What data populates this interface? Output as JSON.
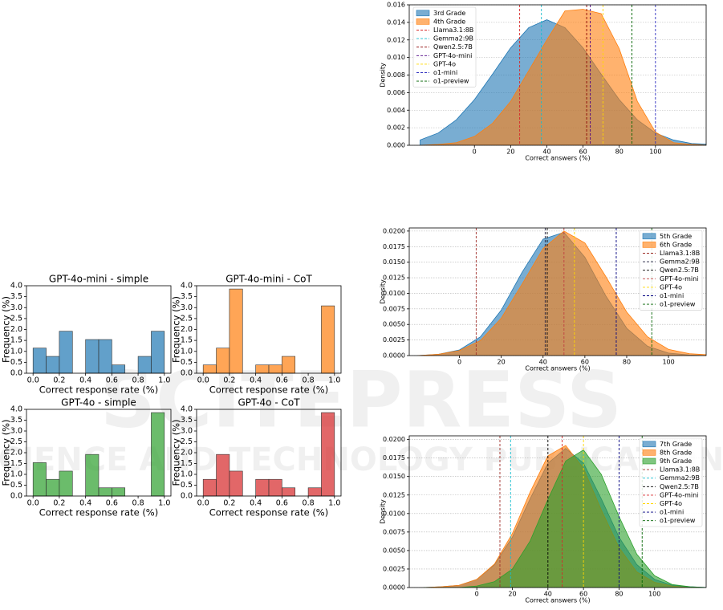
{
  "watermark": {
    "title": "SCITEPRESS",
    "subtitle": "SCIENCE AND TECHNOLOGY PUBLICATIONS"
  },
  "chart_data": [
    {
      "type": "histogram",
      "title": "GPT-4o-mini - simple",
      "xlabel": "Correct response rate (%)",
      "ylabel": "Frequency (%)",
      "color": "#1f77b4",
      "bins": [
        0,
        0.1,
        0.2,
        0.3,
        0.4,
        0.5,
        0.6,
        0.7,
        0.8,
        0.9,
        1.0
      ],
      "values": [
        1.15,
        0.77,
        1.92,
        0,
        1.54,
        1.54,
        0.38,
        0,
        0.77,
        1.92
      ],
      "xlim": [
        -0.05,
        1.05
      ],
      "xticks": [
        {
          "value": 0,
          "label": "0.0"
        },
        0.2,
        0.4,
        0.6,
        0.8,
        {
          "value": 1,
          "label": "1.0"
        }
      ],
      "ylim": [
        0,
        4
      ],
      "yticks": [
        {
          "value": 0,
          "label": "0.0"
        },
        0.5,
        {
          "value": 1,
          "label": "1.0"
        },
        1.5,
        {
          "value": 2,
          "label": "2.0"
        },
        2.5,
        {
          "value": 3,
          "label": "3.0"
        },
        3.5,
        {
          "value": 4,
          "label": "4.0"
        }
      ]
    },
    {
      "type": "histogram",
      "title": "GPT-4o-mini - CoT",
      "xlabel": "Correct response rate (%)",
      "ylabel": "Frequency (%)",
      "color": "#ff7f0e",
      "bins": [
        0,
        0.1,
        0.2,
        0.3,
        0.4,
        0.5,
        0.6,
        0.7,
        0.8,
        0.9,
        1.0
      ],
      "values": [
        0.38,
        1.15,
        3.85,
        0,
        0.38,
        0.38,
        0.77,
        0,
        0,
        3.08
      ],
      "xlim": [
        -0.05,
        1.05
      ],
      "xticks": [
        {
          "value": 0,
          "label": "0.0"
        },
        0.2,
        0.4,
        0.6,
        0.8,
        {
          "value": 1,
          "label": "1.0"
        }
      ],
      "ylim": [
        0,
        4
      ],
      "yticks": [
        {
          "value": 0,
          "label": "0.0"
        },
        0.5,
        {
          "value": 1,
          "label": "1.0"
        },
        1.5,
        {
          "value": 2,
          "label": "2.0"
        },
        2.5,
        {
          "value": 3,
          "label": "3.0"
        },
        3.5,
        {
          "value": 4,
          "label": "4.0"
        }
      ]
    },
    {
      "type": "histogram",
      "title": "GPT-4o - simple",
      "xlabel": "Correct response rate (%)",
      "ylabel": "Frequency (%)",
      "color": "#2ca02c",
      "bins": [
        0,
        0.1,
        0.2,
        0.3,
        0.4,
        0.5,
        0.6,
        0.7,
        0.8,
        0.9,
        1.0
      ],
      "values": [
        1.54,
        0.77,
        1.15,
        0,
        1.92,
        0.38,
        0.38,
        0,
        0,
        3.85
      ],
      "xlim": [
        -0.05,
        1.05
      ],
      "xticks": [
        {
          "value": 0,
          "label": "0.0"
        },
        0.2,
        0.4,
        0.6,
        0.8,
        {
          "value": 1,
          "label": "1.0"
        }
      ],
      "ylim": [
        0,
        4
      ],
      "yticks": [
        {
          "value": 0,
          "label": "0.0"
        },
        0.5,
        {
          "value": 1,
          "label": "1.0"
        },
        1.5,
        {
          "value": 2,
          "label": "2.0"
        },
        2.5,
        {
          "value": 3,
          "label": "3.0"
        },
        3.5,
        {
          "value": 4,
          "label": "4.0"
        }
      ]
    },
    {
      "type": "histogram",
      "title": "GPT-4o - CoT",
      "xlabel": "Correct response rate (%)",
      "ylabel": "Frequency (%)",
      "color": "#d62728",
      "bins": [
        0,
        0.1,
        0.2,
        0.3,
        0.4,
        0.5,
        0.6,
        0.7,
        0.8,
        0.9,
        1.0
      ],
      "values": [
        0.77,
        1.92,
        1.15,
        0,
        0.77,
        0.77,
        0.38,
        0,
        0.38,
        3.85
      ],
      "xlim": [
        -0.05,
        1.05
      ],
      "xticks": [
        {
          "value": 0,
          "label": "0.0"
        },
        0.2,
        0.4,
        0.6,
        0.8,
        {
          "value": 1,
          "label": "1.0"
        }
      ],
      "ylim": [
        0,
        4
      ],
      "yticks": [
        {
          "value": 0,
          "label": "0.0"
        },
        0.5,
        {
          "value": 1,
          "label": "1.0"
        },
        1.5,
        {
          "value": 2,
          "label": "2.0"
        },
        2.5,
        {
          "value": 3,
          "label": "3.0"
        },
        3.5,
        {
          "value": 4,
          "label": "4.0"
        }
      ]
    },
    {
      "type": "area",
      "xlabel": "Correct answers (%)",
      "ylabel": "Density",
      "legend": "upper left",
      "grid": true,
      "x": [
        -30,
        -20,
        -10,
        0,
        10,
        20,
        30,
        40,
        50,
        60,
        70,
        80,
        90,
        100,
        110,
        120,
        130
      ],
      "series": [
        {
          "name": "3rd Grade",
          "color": "#1f77b4",
          "values": [
            0.0006,
            0.0014,
            0.0029,
            0.0052,
            0.0081,
            0.0111,
            0.0134,
            0.0143,
            0.0134,
            0.0111,
            0.0081,
            0.0052,
            0.0029,
            0.0014,
            0.0006,
            0.0002,
            0.0001
          ]
        },
        {
          "name": "4th Grade",
          "color": "#ff7f0e",
          "values": [
            0,
            0.0001,
            0.0003,
            0.001,
            0.0025,
            0.005,
            0.0085,
            0.012,
            0.0153,
            0.0155,
            0.015,
            0.011,
            0.005,
            0.0015,
            0.0003,
            0.0001,
            0
          ]
        }
      ],
      "vlines": [
        {
          "name": "Llama3.1:8B",
          "color": "#d62728",
          "value": 25
        },
        {
          "name": "Gemma2:9B",
          "color": "#17becf",
          "value": 37
        },
        {
          "name": "Qwen2.5:7B",
          "color": "#8b0000",
          "value": 62
        },
        {
          "name": "GPT-4o-mini",
          "color": "#4b0082",
          "value": 64
        },
        {
          "name": "GPT-4o",
          "color": "#ffd700",
          "value": 71
        },
        {
          "name": "o1-mini",
          "color": "#3030c0",
          "value": 100
        },
        {
          "name": "o1-preview",
          "color": "#006400",
          "value": 87
        }
      ],
      "xlim": [
        -36,
        128
      ],
      "xticks": [
        0,
        20,
        40,
        60,
        80,
        100
      ],
      "ylim": [
        0,
        0.016
      ],
      "yticks": [
        {
          "value": 0,
          "label": "0.000"
        },
        0.002,
        0.004,
        0.006,
        0.008,
        {
          "value": 0.01,
          "label": "0.010"
        },
        0.012,
        0.014,
        0.016
      ]
    },
    {
      "type": "area",
      "xlabel": "Correct answers (%)",
      "ylabel": "Density",
      "legend": "upper right",
      "grid": true,
      "x": [
        -20,
        -10,
        0,
        10,
        20,
        30,
        40,
        50,
        60,
        70,
        80,
        90,
        100,
        110,
        120
      ],
      "series": [
        {
          "name": "5th Grade",
          "color": "#1f77b4",
          "values": [
            0,
            0.0002,
            0.0009,
            0.003,
            0.0073,
            0.0134,
            0.0187,
            0.0198,
            0.0158,
            0.0096,
            0.0044,
            0.0015,
            0.0004,
            0.0001,
            0
          ]
        },
        {
          "name": "6th Grade",
          "color": "#ff7f0e",
          "values": [
            0,
            0.0002,
            0.0008,
            0.0024,
            0.006,
            0.0115,
            0.0172,
            0.02,
            0.0181,
            0.0127,
            0.007,
            0.003,
            0.001,
            0.0003,
            0.0001
          ]
        }
      ],
      "vlines": [
        {
          "name": "Llama3.1:8B",
          "color": "#a0302a",
          "value": 8
        },
        {
          "name": "Gemma2:9B",
          "color": "#202040",
          "value": 41
        },
        {
          "name": "Qwen2.5:7B",
          "color": "#000000",
          "value": 42
        },
        {
          "name": "GPT-4o-mini",
          "color": "#c04040",
          "value": 50
        },
        {
          "name": "GPT-4o",
          "color": "#ffd700",
          "value": 55
        },
        {
          "name": "o1-mini",
          "color": "#000080",
          "value": 75
        },
        {
          "name": "o1-preview",
          "color": "#006400",
          "value": 92
        }
      ],
      "xlim": [
        -24,
        118
      ],
      "xticks": [
        0,
        20,
        40,
        60,
        80,
        100
      ],
      "ylim": [
        0,
        0.0205
      ],
      "yticks": [
        {
          "value": 0,
          "label": "0.0000"
        },
        0.0025,
        {
          "value": 0.005,
          "label": "0.0050"
        },
        0.0075,
        {
          "value": 0.01,
          "label": "0.0100"
        },
        0.0125,
        {
          "value": 0.015,
          "label": "0.0150"
        },
        0.0175,
        {
          "value": 0.02,
          "label": "0.0200"
        }
      ]
    },
    {
      "type": "area",
      "xlabel": "Correct answers (%)",
      "ylabel": "Density",
      "legend": "upper right",
      "grid": true,
      "x": [
        -30,
        -20,
        -10,
        0,
        10,
        20,
        30,
        40,
        50,
        60,
        70,
        80,
        90,
        100,
        110,
        120,
        130
      ],
      "series": [
        {
          "name": "7th Grade",
          "color": "#1f77b4",
          "values": [
            0,
            0.0001,
            0.0003,
            0.0011,
            0.0031,
            0.0068,
            0.012,
            0.0168,
            0.0188,
            0.0168,
            0.012,
            0.0068,
            0.0031,
            0.0011,
            0.0003,
            0.0001,
            0
          ]
        },
        {
          "name": "8th Grade",
          "color": "#ff7f0e",
          "values": [
            0,
            0.0001,
            0.0003,
            0.0011,
            0.0032,
            0.0073,
            0.0129,
            0.0178,
            0.0192,
            0.0161,
            0.0105,
            0.0054,
            0.0021,
            0.0007,
            0.0002,
            0,
            0
          ]
        },
        {
          "name": "9th Grade",
          "color": "#2ca02c",
          "values": [
            0,
            0,
            0,
            0.0002,
            0.0008,
            0.0025,
            0.0063,
            0.0119,
            0.0171,
            0.0186,
            0.0153,
            0.0096,
            0.0045,
            0.0016,
            0.0004,
            0.0001,
            0
          ]
        }
      ],
      "vlines": [
        {
          "name": "Llama3.1:8B",
          "color": "#a0302a",
          "value": 13
        },
        {
          "name": "Gemma2:9B",
          "color": "#17becf",
          "value": 19
        },
        {
          "name": "Qwen2.5:7B",
          "color": "#000000",
          "value": 40
        },
        {
          "name": "GPT-4o-mini",
          "color": "#d62728",
          "value": 48
        },
        {
          "name": "GPT-4o",
          "color": "#ffd700",
          "value": 60
        },
        {
          "name": "o1-mini",
          "color": "#000080",
          "value": 80
        },
        {
          "name": "o1-preview",
          "color": "#006400",
          "value": 93
        }
      ],
      "xlim": [
        -38,
        129
      ],
      "xticks": [
        0,
        20,
        40,
        60,
        80,
        100
      ],
      "ylim": [
        0,
        0.0205
      ],
      "yticks": [
        {
          "value": 0,
          "label": "0.0000"
        },
        0.0025,
        {
          "value": 0.005,
          "label": "0.0050"
        },
        0.0075,
        {
          "value": 0.01,
          "label": "0.0100"
        },
        0.0125,
        {
          "value": 0.015,
          "label": "0.0150"
        },
        0.0175,
        {
          "value": 0.02,
          "label": "0.0200"
        }
      ]
    }
  ]
}
